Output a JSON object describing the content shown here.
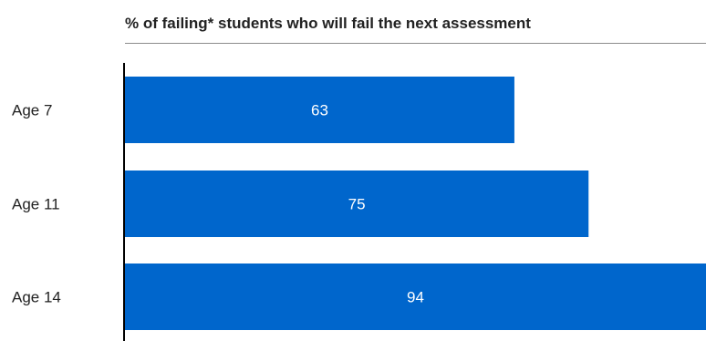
{
  "chart_data": {
    "type": "bar",
    "orientation": "horizontal",
    "title": "% of failing* students who will fail the next assessment",
    "categories": [
      "Age 7",
      "Age 11",
      "Age 14"
    ],
    "values": [
      63,
      75,
      94
    ],
    "xlim": [
      0,
      94
    ],
    "grid": false,
    "legend": "none",
    "colors": {
      "bar": "#0066cc",
      "value_label": "#ffffff",
      "axis": "#000000",
      "text": "#222222"
    }
  }
}
